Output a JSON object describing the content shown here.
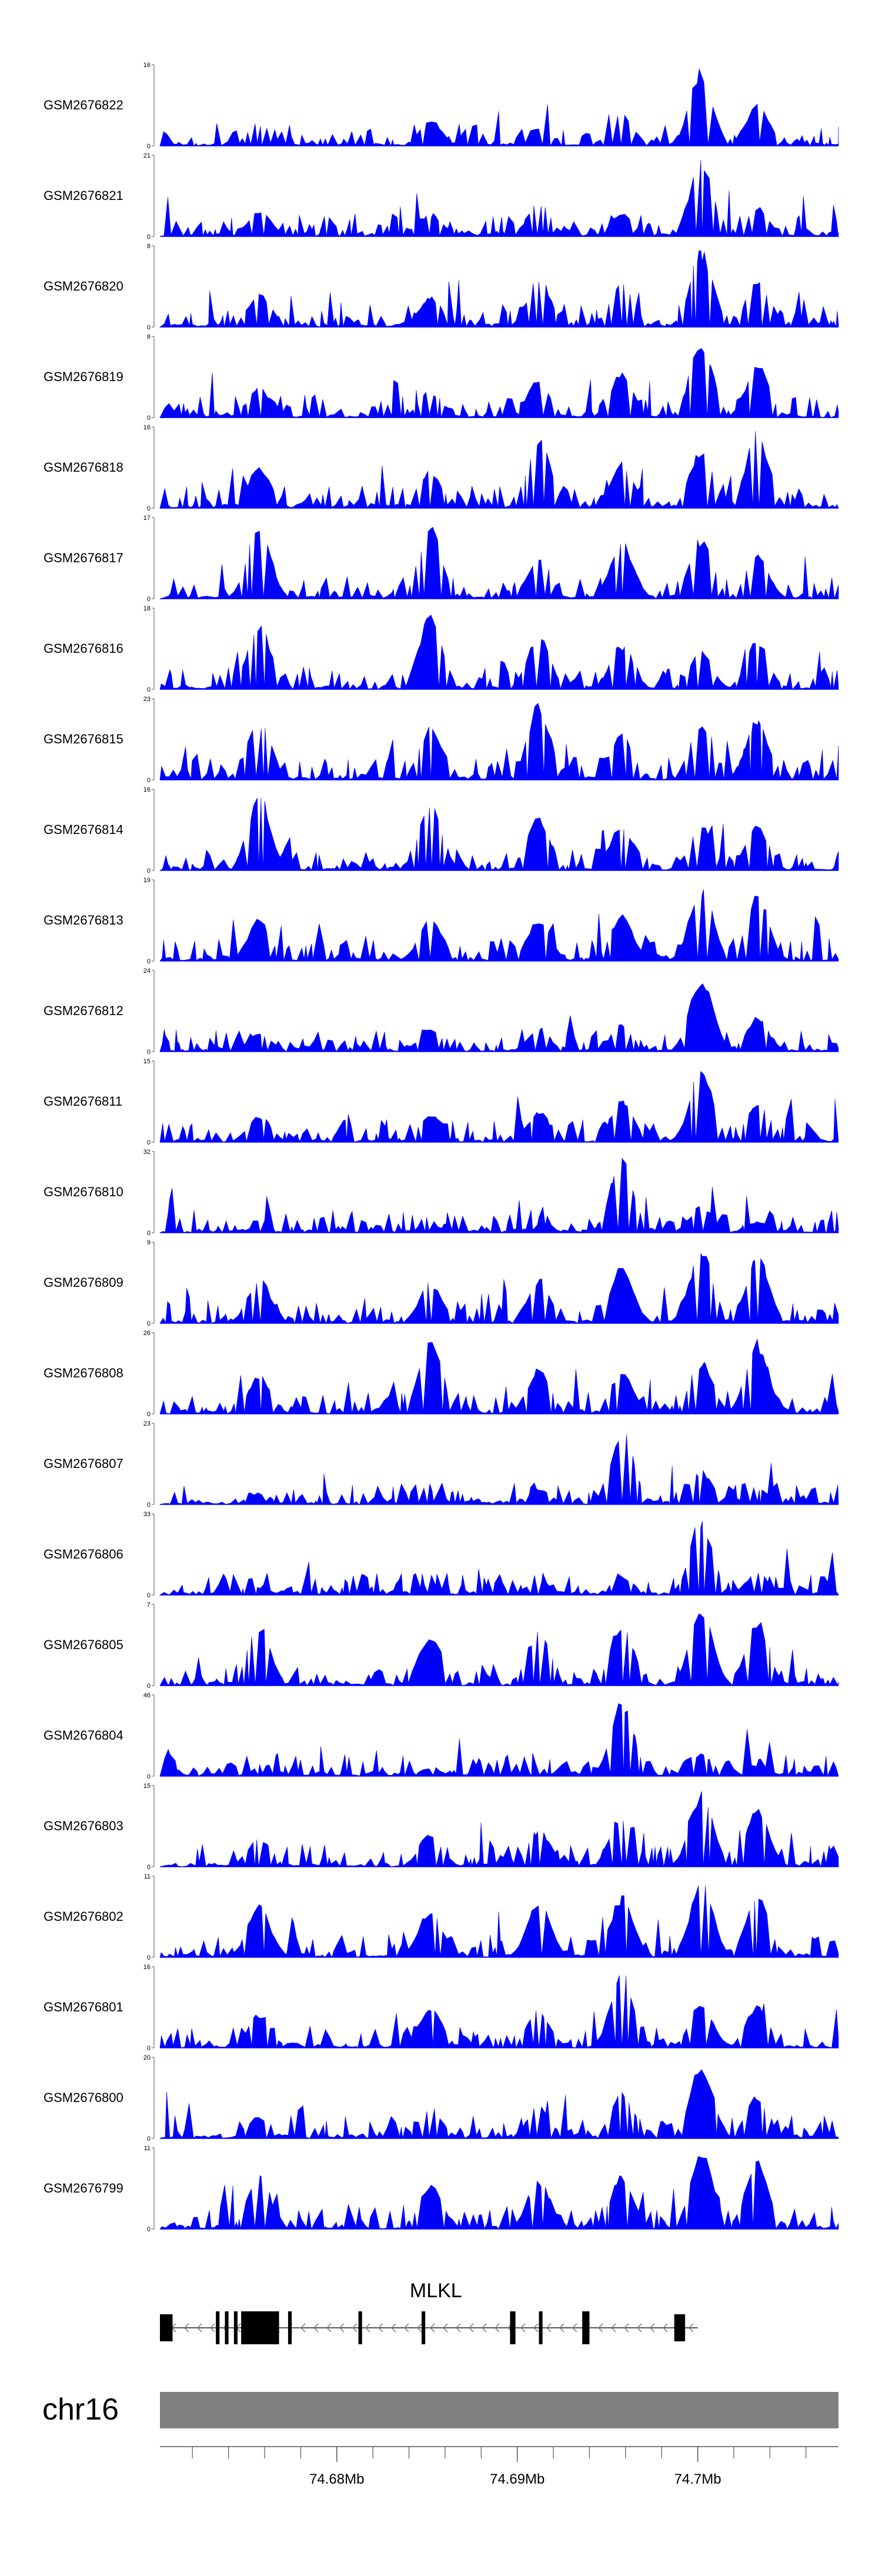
{
  "chart_data": {
    "type": "area",
    "title": "",
    "chromosome": "chr16",
    "gene": "MLKL",
    "region_mb": [
      74.6702,
      74.7078
    ],
    "x_ticks": [
      {
        "pos": 74.68,
        "label": "74.68Mb"
      },
      {
        "pos": 74.69,
        "label": "74.69Mb"
      },
      {
        "pos": 74.7,
        "label": "74.7Mb"
      }
    ],
    "minor_tick_step_mb": 0.002,
    "colors": {
      "signal": "#0000ff",
      "gene": "#000000",
      "ideogram": "#808080",
      "axis": "#555555"
    },
    "summit_positions_mb": [
      74.6757,
      74.6852,
      74.6912,
      74.6958,
      74.7002,
      74.7033
    ],
    "tracks": [
      {
        "sample": "GSM2676822",
        "ymin": 0,
        "ymax": 16,
        "summits": [
          0.3,
          0.35,
          0.25,
          0.45,
          1.0,
          0.55
        ]
      },
      {
        "sample": "GSM2676821",
        "ymin": 0,
        "ymax": 21,
        "summits": [
          0.35,
          0.3,
          0.45,
          0.3,
          1.0,
          0.4
        ]
      },
      {
        "sample": "GSM2676820",
        "ymin": 0,
        "ymax": 8,
        "summits": [
          0.45,
          0.4,
          0.65,
          0.6,
          1.0,
          0.6
        ]
      },
      {
        "sample": "GSM2676819",
        "ymin": 0,
        "ymax": 8,
        "summits": [
          0.4,
          0.35,
          0.5,
          0.6,
          1.0,
          0.7
        ]
      },
      {
        "sample": "GSM2676818",
        "ymin": 0,
        "ymax": 16,
        "summits": [
          0.55,
          0.5,
          0.95,
          0.6,
          0.8,
          1.0
        ]
      },
      {
        "sample": "GSM2676817",
        "ymin": 0,
        "ymax": 17,
        "summits": [
          1.0,
          0.95,
          0.55,
          0.75,
          0.8,
          0.6
        ]
      },
      {
        "sample": "GSM2676816",
        "ymin": 0,
        "ymax": 18,
        "summits": [
          0.9,
          1.0,
          0.7,
          0.6,
          0.5,
          0.65
        ]
      },
      {
        "sample": "GSM2676815",
        "ymin": 0,
        "ymax": 23,
        "summits": [
          0.8,
          0.7,
          1.0,
          0.6,
          0.75,
          0.8
        ]
      },
      {
        "sample": "GSM2676814",
        "ymin": 0,
        "ymax": 16,
        "summits": [
          1.0,
          0.9,
          0.7,
          0.6,
          0.65,
          0.6
        ]
      },
      {
        "sample": "GSM2676813",
        "ymin": 0,
        "ymax": 19,
        "summits": [
          0.55,
          0.6,
          0.55,
          0.6,
          1.0,
          0.9
        ]
      },
      {
        "sample": "GSM2676812",
        "ymin": 0,
        "ymax": 24,
        "summits": [
          0.25,
          0.3,
          0.3,
          0.35,
          1.0,
          0.45
        ]
      },
      {
        "sample": "GSM2676811",
        "ymin": 0,
        "ymax": 15,
        "summits": [
          0.35,
          0.4,
          0.4,
          0.55,
          1.0,
          0.5
        ]
      },
      {
        "sample": "GSM2676810",
        "ymin": 0,
        "ymax": 32,
        "summits": [
          0.08,
          0.1,
          0.12,
          1.0,
          0.35,
          0.15
        ]
      },
      {
        "sample": "GSM2676809",
        "ymin": 0,
        "ymax": 9,
        "summits": [
          0.6,
          0.55,
          0.6,
          0.75,
          1.0,
          0.9
        ]
      },
      {
        "sample": "GSM2676808",
        "ymin": 0,
        "ymax": 26,
        "summits": [
          0.5,
          1.0,
          0.6,
          0.55,
          0.7,
          0.95
        ]
      },
      {
        "sample": "GSM2676807",
        "ymin": 0,
        "ymax": 23,
        "summits": [
          0.15,
          0.2,
          0.2,
          1.0,
          0.45,
          0.2
        ]
      },
      {
        "sample": "GSM2676806",
        "ymin": 0,
        "ymax": 33,
        "summits": [
          0.1,
          0.15,
          0.2,
          0.25,
          1.0,
          0.3
        ]
      },
      {
        "sample": "GSM2676805",
        "ymin": 0,
        "ymax": 7,
        "summits": [
          0.8,
          0.7,
          0.75,
          0.85,
          1.0,
          0.85
        ]
      },
      {
        "sample": "GSM2676804",
        "ymin": 0,
        "ymax": 46,
        "summits": [
          0.08,
          0.1,
          0.12,
          1.0,
          0.3,
          0.15
        ]
      },
      {
        "sample": "GSM2676803",
        "ymin": 0,
        "ymax": 15,
        "summits": [
          0.4,
          0.45,
          0.5,
          0.7,
          1.0,
          0.75
        ]
      },
      {
        "sample": "GSM2676802",
        "ymin": 0,
        "ymax": 11,
        "summits": [
          0.7,
          0.65,
          0.75,
          0.8,
          1.0,
          0.85
        ]
      },
      {
        "sample": "GSM2676801",
        "ymin": 0,
        "ymax": 16,
        "summits": [
          0.45,
          0.55,
          0.5,
          1.0,
          0.6,
          0.55
        ]
      },
      {
        "sample": "GSM2676800",
        "ymin": 0,
        "ymax": 20,
        "summits": [
          0.3,
          0.4,
          0.45,
          0.6,
          1.0,
          0.55
        ]
      },
      {
        "sample": "GSM2676799",
        "ymin": 0,
        "ymax": 11,
        "summits": [
          0.7,
          0.6,
          0.65,
          0.7,
          1.0,
          0.9
        ]
      }
    ],
    "gene_model": {
      "name": "MLKL",
      "strand": "-",
      "start_mb": 74.6702,
      "end_mb": 74.7,
      "exons_mb": [
        [
          74.6702,
          74.6709
        ],
        [
          74.6733,
          74.6735
        ],
        [
          74.6738,
          74.674
        ],
        [
          74.6743,
          74.6745
        ],
        [
          74.6747,
          74.6768
        ],
        [
          74.6773,
          74.6775
        ],
        [
          74.6812,
          74.6814
        ],
        [
          74.6847,
          74.6849
        ],
        [
          74.6896,
          74.6899
        ],
        [
          74.6912,
          74.6914
        ],
        [
          74.6936,
          74.694
        ],
        [
          74.6987,
          74.6993
        ]
      ]
    }
  }
}
